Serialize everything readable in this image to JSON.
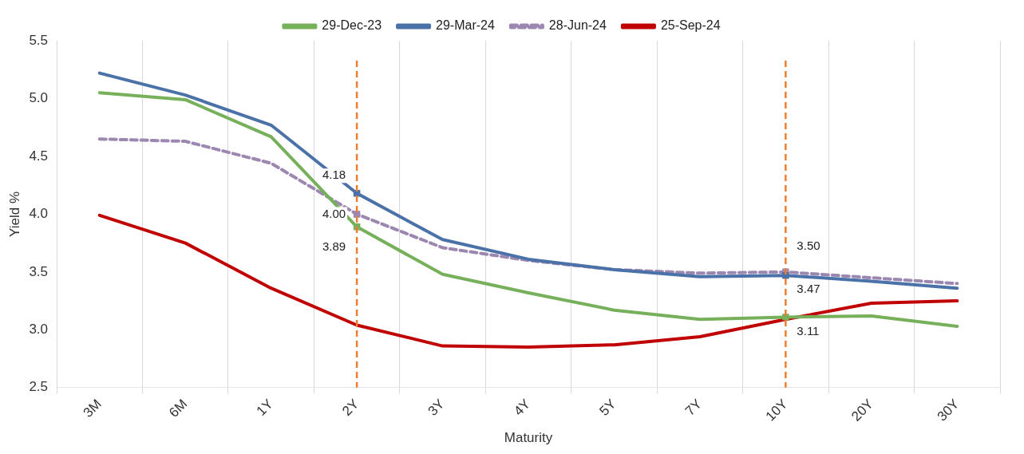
{
  "chart_data": {
    "type": "line",
    "xlabel": "Maturity",
    "ylabel": "Yield %",
    "categories": [
      "3M",
      "6M",
      "1Y",
      "2Y",
      "3Y",
      "4Y",
      "5Y",
      "7Y",
      "10Y",
      "20Y",
      "30Y"
    ],
    "series": [
      {
        "name": "29-Dec-23",
        "color": "#77b05a",
        "values": [
          5.05,
          4.99,
          4.67,
          3.89,
          3.48,
          3.32,
          3.17,
          3.09,
          3.11,
          3.12,
          3.03
        ],
        "value_labels": [
          null,
          null,
          null,
          "3.89",
          null,
          null,
          null,
          null,
          "3.11",
          null,
          null
        ]
      },
      {
        "name": "29-Mar-24",
        "color": "#4a72a8",
        "values": [
          5.22,
          5.03,
          4.77,
          4.18,
          3.78,
          3.61,
          3.52,
          3.46,
          3.47,
          3.42,
          3.36
        ],
        "value_labels": [
          null,
          null,
          null,
          "4.18",
          null,
          null,
          null,
          null,
          "3.47",
          null,
          null
        ]
      },
      {
        "name": "28-Jun-24",
        "color": "#9b87b0",
        "line_style": "dashed",
        "values": [
          4.65,
          4.63,
          4.44,
          4.0,
          3.71,
          3.6,
          3.52,
          3.49,
          3.5,
          3.45,
          3.4
        ],
        "value_labels": [
          null,
          null,
          null,
          "4.00",
          null,
          null,
          null,
          null,
          "3.50",
          null,
          null
        ]
      },
      {
        "name": "25-Sep-24",
        "color": "#c00000",
        "values": [
          3.99,
          3.75,
          3.36,
          3.04,
          2.86,
          2.85,
          2.87,
          2.94,
          3.09,
          3.23,
          3.25
        ]
      }
    ],
    "ylim": [
      2.5,
      5.5
    ],
    "yticks": [
      {
        "value": 2.5,
        "label": "2.5"
      },
      {
        "value": 3,
        "label": "3.0"
      },
      {
        "value": 3.5,
        "label": "3.5"
      },
      {
        "value": 4,
        "label": "4.0"
      },
      {
        "value": 4.5,
        "label": "4.5"
      },
      {
        "value": 5,
        "label": "5.0"
      },
      {
        "value": 5.5,
        "label": "5.5"
      }
    ],
    "ref_lines": [
      {
        "axis": "x",
        "value": "2Y",
        "color": "#ed7d31",
        "line_style": "dashed"
      },
      {
        "axis": "x",
        "value": "10Y",
        "color": "#ed7d31",
        "line_style": "dashed"
      }
    ],
    "grid": "x",
    "legend": "top",
    "line_style": "solid"
  }
}
